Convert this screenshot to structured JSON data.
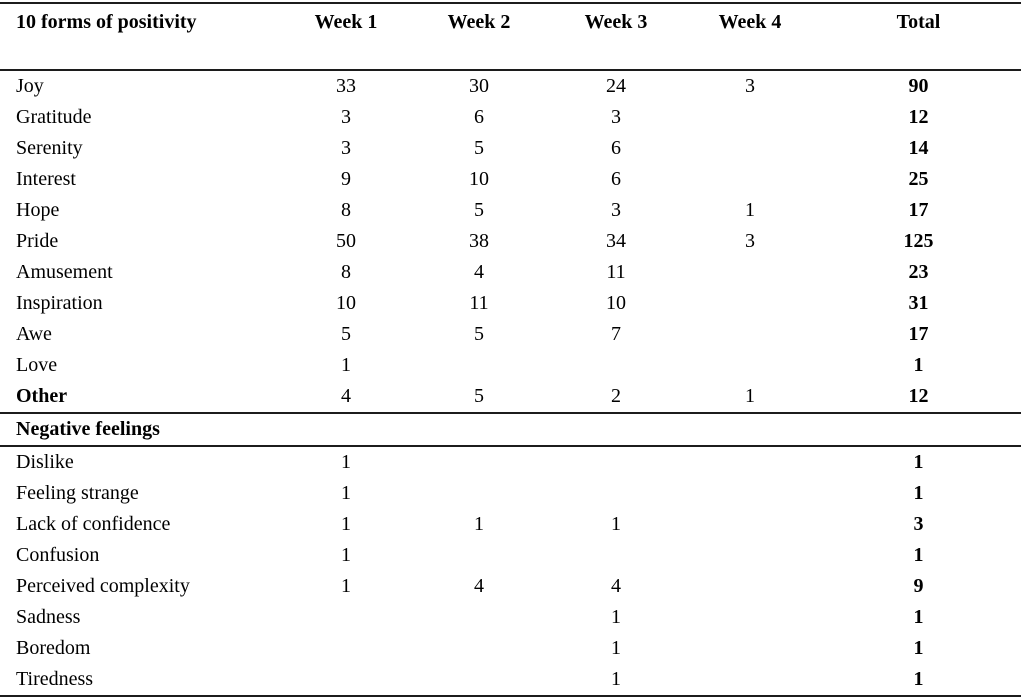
{
  "header": {
    "columns": [
      {
        "label": "10 forms of positivity"
      },
      {
        "label": "Week 1"
      },
      {
        "label": "Week 2"
      },
      {
        "label": "Week 3"
      },
      {
        "label": "Week 4"
      },
      {
        "label": "Total"
      }
    ]
  },
  "positivity_section": {
    "rows": [
      {
        "label": "Joy",
        "label_bold": false,
        "values": [
          "33",
          "30",
          "24",
          "3"
        ],
        "total": "90"
      },
      {
        "label": "Gratitude",
        "label_bold": false,
        "values": [
          "3",
          "6",
          "3",
          ""
        ],
        "total": "12"
      },
      {
        "label": "Serenity",
        "label_bold": false,
        "values": [
          "3",
          "5",
          "6",
          ""
        ],
        "total": "14"
      },
      {
        "label": "Interest",
        "label_bold": false,
        "values": [
          "9",
          "10",
          "6",
          ""
        ],
        "total": "25"
      },
      {
        "label": "Hope",
        "label_bold": false,
        "values": [
          "8",
          "5",
          "3",
          "1"
        ],
        "total": "17"
      },
      {
        "label": "Pride",
        "label_bold": false,
        "values": [
          "50",
          "38",
          "34",
          "3"
        ],
        "total": "125"
      },
      {
        "label": "Amusement",
        "label_bold": false,
        "values": [
          "8",
          "4",
          "11",
          ""
        ],
        "total": "23"
      },
      {
        "label": "Inspiration",
        "label_bold": false,
        "values": [
          "10",
          "11",
          "10",
          ""
        ],
        "total": "31"
      },
      {
        "label": "Awe",
        "label_bold": false,
        "values": [
          "5",
          "5",
          "7",
          ""
        ],
        "total": "17"
      },
      {
        "label": "Love",
        "label_bold": false,
        "values": [
          "1",
          "",
          "",
          ""
        ],
        "total": "1"
      },
      {
        "label": "Other",
        "label_bold": true,
        "values": [
          "4",
          "5",
          "2",
          "1"
        ],
        "total": "12"
      }
    ]
  },
  "negative_section": {
    "title": "Negative feelings",
    "rows": [
      {
        "label": "Dislike",
        "label_bold": false,
        "values": [
          "1",
          "",
          "",
          ""
        ],
        "total": "1"
      },
      {
        "label": "Feeling strange",
        "label_bold": false,
        "values": [
          "1",
          "",
          "",
          ""
        ],
        "total": "1"
      },
      {
        "label": "Lack of confidence",
        "label_bold": false,
        "values": [
          "1",
          "1",
          "1",
          ""
        ],
        "total": "3"
      },
      {
        "label": "Confusion",
        "label_bold": false,
        "values": [
          "1",
          "",
          "",
          ""
        ],
        "total": "1"
      },
      {
        "label": "Perceived complexity",
        "label_bold": false,
        "values": [
          "1",
          "4",
          "4",
          ""
        ],
        "total": "9"
      },
      {
        "label": "Sadness",
        "label_bold": false,
        "values": [
          "",
          "",
          "1",
          ""
        ],
        "total": "1"
      },
      {
        "label": "Boredom",
        "label_bold": false,
        "values": [
          "",
          "",
          "1",
          ""
        ],
        "total": "1"
      },
      {
        "label": "Tiredness",
        "label_bold": false,
        "values": [
          "",
          "",
          "1",
          ""
        ],
        "total": "1"
      }
    ]
  }
}
